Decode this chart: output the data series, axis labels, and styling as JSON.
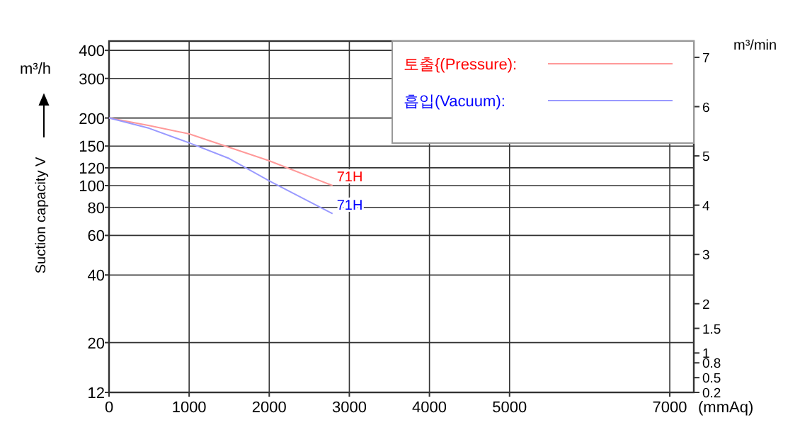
{
  "chart_data": {
    "type": "line",
    "ylabel": "Suction capacity V",
    "y2label": "m³/min",
    "xlabel": "(mmAq)",
    "annotations": [
      "m³/h",
      {
        "text": "71H",
        "x": 2790,
        "y": 100
      },
      {
        "text": "71H",
        "x": 2790,
        "y": 75
      }
    ],
    "x": [
      0,
      500,
      1000,
      1500,
      2000,
      2790
    ],
    "series": [
      {
        "name": "토출{(Pressure):",
        "color": "#ff9999",
        "values": [
          200,
          185,
          170,
          148,
          129,
          100
        ]
      },
      {
        "name": "흡입(Vacuum):",
        "color": "#9999ff",
        "values": [
          200,
          180,
          155,
          132,
          105,
          75
        ]
      }
    ],
    "log": "y",
    "grid": true,
    "legend": "top right",
    "xlim": [
      0,
      7300
    ],
    "ylim": [
      12,
      440
    ],
    "y2lim": [
      0.2,
      7.33
    ],
    "xticks": [
      0,
      1000,
      2000,
      3000,
      4000,
      5000,
      7000
    ],
    "yticks": [
      12,
      20,
      40,
      60,
      80,
      100,
      120,
      150,
      200,
      300,
      400
    ],
    "y2ticks": [
      0.2,
      0.5,
      0.8,
      1,
      1.5,
      2,
      3,
      4,
      5,
      6,
      7
    ]
  }
}
